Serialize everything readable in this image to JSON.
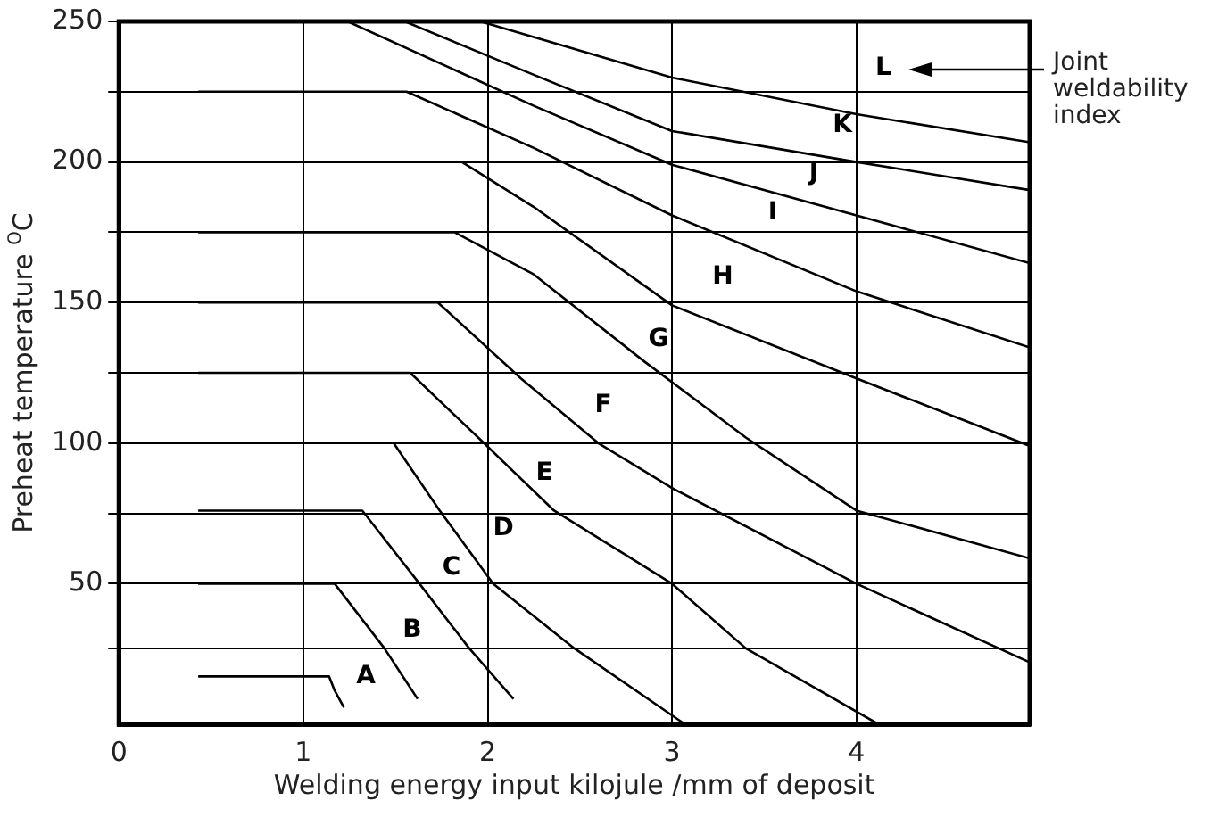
{
  "chart_data": {
    "type": "line",
    "xlabel": "Welding energy input kilojule /mm of deposit",
    "ylabel": "Preheat temperature $^{O}$C",
    "xlim": [
      0,
      4.94
    ],
    "ylim": [
      0,
      250
    ],
    "xticks": [
      0,
      1,
      2,
      3,
      4
    ],
    "yticks": [
      {
        "value": 27,
        "label": null
      },
      50,
      {
        "value": 75,
        "label": null
      },
      100,
      {
        "value": 125,
        "label": null
      },
      150,
      {
        "value": 175,
        "label": null
      },
      200,
      {
        "value": 225,
        "label": null
      },
      250
    ],
    "grid": true,
    "legend": false,
    "marker": "none",
    "line_style": "solid",
    "series": [
      {
        "color": "#000000",
        "x": [
          0.43,
          1.14,
          1.17,
          1.22
        ],
        "values": [
          17,
          17,
          12,
          6
        ]
      },
      {
        "color": "#000000",
        "x": [
          0.43,
          1.17,
          1.44,
          1.62
        ],
        "values": [
          50,
          50,
          27,
          9
        ]
      },
      {
        "color": "#000000",
        "x": [
          0.43,
          1.32,
          1.63,
          1.9,
          2.14
        ],
        "values": [
          76,
          76,
          50,
          27,
          9
        ]
      },
      {
        "color": "#000000",
        "x": [
          0.43,
          1.49,
          1.74,
          2.03,
          2.47,
          3.07
        ],
        "values": [
          100,
          100,
          76,
          50,
          27,
          0
        ]
      },
      {
        "color": "#000000",
        "x": [
          0.43,
          1.58,
          1.98,
          2.36,
          3.0,
          3.4,
          4.12
        ],
        "values": [
          125,
          125,
          100,
          76,
          50,
          27,
          0
        ]
      },
      {
        "color": "#000000",
        "x": [
          0.43,
          1.73,
          2.18,
          2.6,
          3.0,
          4.0,
          4.94
        ],
        "values": [
          150,
          150,
          123,
          100,
          84,
          50,
          22
        ]
      },
      {
        "color": "#000000",
        "x": [
          0.43,
          1.82,
          2.25,
          2.85,
          3.4,
          4.0,
          4.94
        ],
        "values": [
          175,
          175,
          160,
          129,
          102,
          76,
          59
        ]
      },
      {
        "color": "#000000",
        "x": [
          0.43,
          1.86,
          2.25,
          3.0,
          4.0,
          4.94
        ],
        "values": [
          200,
          200,
          184,
          149,
          123,
          99
        ]
      },
      {
        "color": "#000000",
        "x": [
          0.43,
          1.56,
          2.25,
          3.0,
          4.0,
          4.94
        ],
        "values": [
          225,
          225,
          205,
          181,
          154,
          134
        ]
      },
      {
        "color": "#000000",
        "x": [
          1.24,
          2.25,
          3.0,
          4.0,
          4.94
        ],
        "values": [
          250,
          220,
          199,
          181,
          164
        ]
      },
      {
        "color": "#000000",
        "x": [
          1.55,
          2.25,
          3.0,
          4.0,
          4.94
        ],
        "values": [
          250,
          231,
          211,
          200,
          190
        ]
      },
      {
        "color": "#000000",
        "x": [
          1.96,
          3.0,
          4.0,
          4.94
        ],
        "values": [
          250,
          230,
          217,
          207
        ]
      }
    ],
    "annotations": [
      "A",
      "B",
      "C",
      "D",
      "E",
      "F",
      "G",
      "H",
      "I",
      "J",
      "K",
      "L",
      "Joint weldability index"
    ]
  }
}
